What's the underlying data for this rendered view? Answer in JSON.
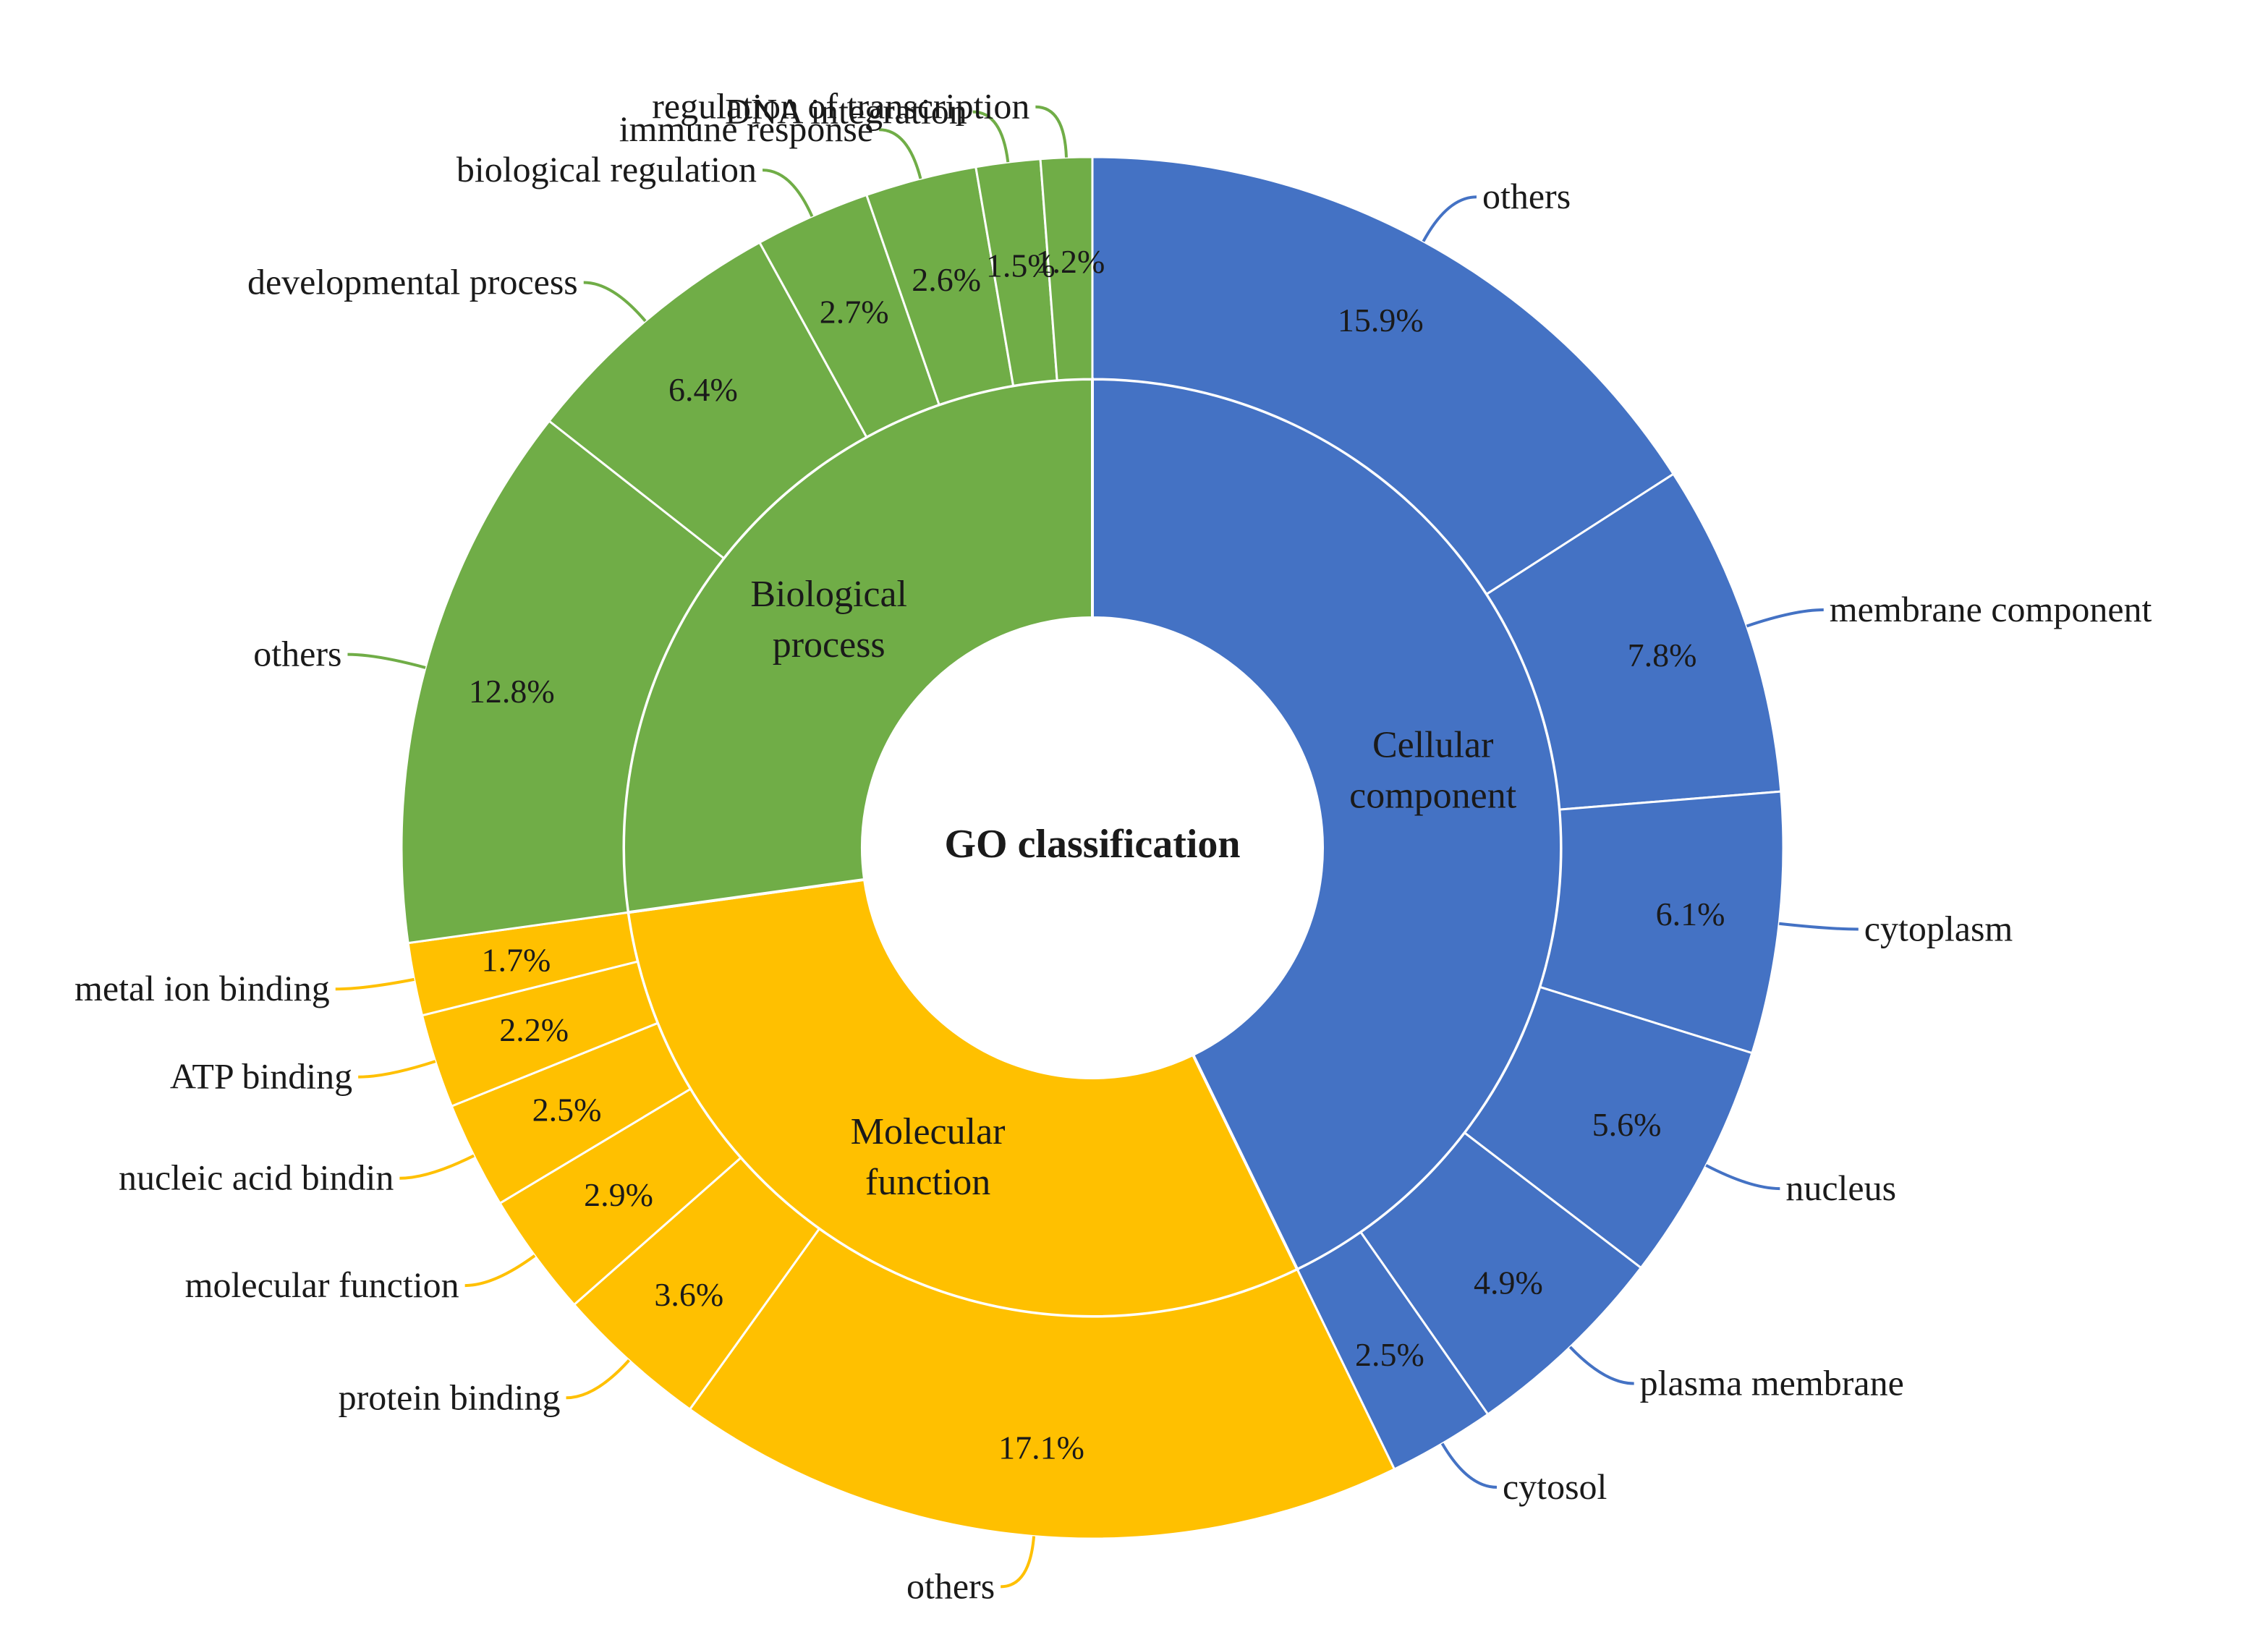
{
  "chart_data": {
    "type": "sunburst",
    "title": "GO classification",
    "groups": [
      {
        "name": "Cellular component",
        "label_lines": [
          "Cellular",
          "component"
        ],
        "color": "#4472C4",
        "children": [
          {
            "name": "others",
            "value": 15.9,
            "pct_label": "15.9%"
          },
          {
            "name": "membrane component",
            "value": 7.8,
            "pct_label": "7.8%"
          },
          {
            "name": "cytoplasm",
            "value": 6.1,
            "pct_label": "6.1%"
          },
          {
            "name": "nucleus",
            "value": 5.6,
            "pct_label": "5.6%"
          },
          {
            "name": "plasma membrane",
            "value": 4.9,
            "pct_label": "4.9%"
          },
          {
            "name": "cytosol",
            "value": 2.5,
            "pct_label": "2.5%"
          }
        ]
      },
      {
        "name": "Molecular function",
        "label_lines": [
          "Molecular",
          "function"
        ],
        "color": "#FFC000",
        "children": [
          {
            "name": "others",
            "value": 17.1,
            "pct_label": "17.1%"
          },
          {
            "name": "protein binding",
            "value": 3.6,
            "pct_label": "3.6%"
          },
          {
            "name": "molecular function",
            "value": 2.9,
            "pct_label": "2.9%"
          },
          {
            "name": "nucleic acid bindin",
            "value": 2.5,
            "pct_label": "2.5%"
          },
          {
            "name": "ATP binding",
            "value": 2.2,
            "pct_label": "2.2%"
          },
          {
            "name": "metal ion binding",
            "value": 1.7,
            "pct_label": "1.7%"
          }
        ]
      },
      {
        "name": "Biological process",
        "label_lines": [
          "Biological",
          "process"
        ],
        "color": "#70AD47",
        "children": [
          {
            "name": "others",
            "value": 12.8,
            "pct_label": "12.8%"
          },
          {
            "name": "developmental process",
            "value": 6.4,
            "pct_label": "6.4%"
          },
          {
            "name": "biological regulation",
            "value": 2.7,
            "pct_label": "2.7%"
          },
          {
            "name": "immune response",
            "value": 2.6,
            "pct_label": "2.6%"
          },
          {
            "name": "DNA integration",
            "value": 1.5,
            "pct_label": "1.5%"
          },
          {
            "name": "regulation of transcription",
            "value": 1.2,
            "pct_label": "1.2%"
          }
        ]
      }
    ]
  }
}
